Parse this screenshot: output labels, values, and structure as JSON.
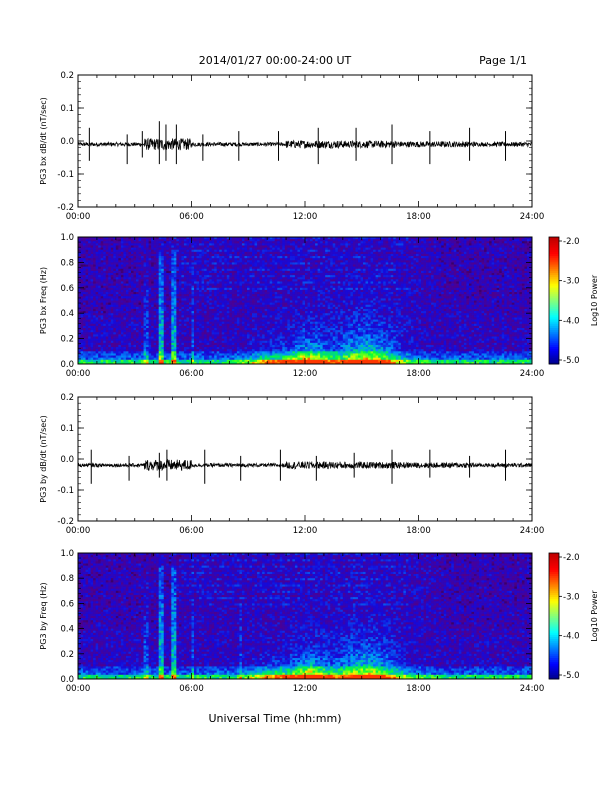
{
  "header": {
    "title": "2014/01/27  00:00-24:00 UT",
    "page": "Page 1/1"
  },
  "footer": {
    "xlabel": "Universal Time (hh:mm)"
  },
  "chart_data": [
    {
      "type": "line",
      "ylabel": "PG3 bx dB/dt (nT/sec)",
      "xlim": [
        0,
        24
      ],
      "ylim": [
        -0.2,
        0.2
      ],
      "x_ticks": [
        "00:00",
        "06:00",
        "12:00",
        "18:00",
        "24:00"
      ],
      "y_ticks": [
        "0.2",
        "0.1",
        "0.0",
        "-0.1",
        "-0.2"
      ],
      "baseline": -0.01,
      "spikes": [
        {
          "t": 0.6,
          "up": 0.04,
          "down": -0.06
        },
        {
          "t": 2.6,
          "up": 0.02,
          "down": -0.07
        },
        {
          "t": 3.4,
          "up": 0.03,
          "down": -0.05
        },
        {
          "t": 4.3,
          "up": 0.06,
          "down": -0.07
        },
        {
          "t": 4.65,
          "up": 0.05,
          "down": -0.06
        },
        {
          "t": 5.2,
          "up": 0.05,
          "down": -0.07
        },
        {
          "t": 6.6,
          "up": 0.02,
          "down": -0.06
        },
        {
          "t": 8.5,
          "up": 0.03,
          "down": -0.06
        },
        {
          "t": 10.6,
          "up": 0.03,
          "down": -0.06
        },
        {
          "t": 12.7,
          "up": 0.04,
          "down": -0.07
        },
        {
          "t": 14.7,
          "up": 0.04,
          "down": -0.06
        },
        {
          "t": 16.6,
          "up": 0.05,
          "down": -0.07
        },
        {
          "t": 18.6,
          "up": 0.03,
          "down": -0.07
        },
        {
          "t": 20.7,
          "up": 0.04,
          "down": -0.06
        },
        {
          "t": 22.6,
          "up": 0.03,
          "down": -0.06
        }
      ]
    },
    {
      "type": "heatmap",
      "ylabel": "PG3 bx Freq (Hz)",
      "xlim": [
        0,
        24
      ],
      "ylim": [
        0.0,
        1.0
      ],
      "x_ticks": [
        "00:00",
        "06:00",
        "12:00",
        "18:00",
        "24:00"
      ],
      "y_ticks": [
        "1.0",
        "0.8",
        "0.6",
        "0.4",
        "0.2",
        "0.0"
      ],
      "colorbar": {
        "label": "Log10 Power",
        "min": -5.0,
        "max": -2.0,
        "ticks": [
          "-2.0",
          "-3.0",
          "-4.0",
          "-5.0"
        ]
      }
    },
    {
      "type": "line",
      "ylabel": "PG3 by dB/dt (nT/sec)",
      "xlim": [
        0,
        24
      ],
      "ylim": [
        -0.2,
        0.2
      ],
      "x_ticks": [
        "00:00",
        "06:00",
        "12:00",
        "18:00",
        "24:00"
      ],
      "y_ticks": [
        "0.2",
        "0.1",
        "0.0",
        "-0.1",
        "-0.2"
      ],
      "baseline": -0.02,
      "spikes": [
        {
          "t": 0.7,
          "up": 0.03,
          "down": -0.08
        },
        {
          "t": 2.7,
          "up": 0.01,
          "down": -0.07
        },
        {
          "t": 4.3,
          "up": 0.02,
          "down": -0.06
        },
        {
          "t": 4.7,
          "up": 0.03,
          "down": -0.07
        },
        {
          "t": 6.7,
          "up": 0.03,
          "down": -0.08
        },
        {
          "t": 8.6,
          "up": 0.01,
          "down": -0.07
        },
        {
          "t": 10.7,
          "up": 0.03,
          "down": -0.07
        },
        {
          "t": 12.6,
          "up": 0.01,
          "down": -0.07
        },
        {
          "t": 14.6,
          "up": 0.02,
          "down": -0.06
        },
        {
          "t": 16.6,
          "up": 0.03,
          "down": -0.08
        },
        {
          "t": 18.6,
          "up": 0.03,
          "down": -0.06
        },
        {
          "t": 20.7,
          "up": 0.01,
          "down": -0.06
        },
        {
          "t": 22.6,
          "up": 0.03,
          "down": -0.07
        }
      ]
    },
    {
      "type": "heatmap",
      "ylabel": "PG3 by Freq (Hz)",
      "xlim": [
        0,
        24
      ],
      "ylim": [
        0.0,
        1.0
      ],
      "x_ticks": [
        "00:00",
        "06:00",
        "12:00",
        "18:00",
        "24:00"
      ],
      "y_ticks": [
        "1.0",
        "0.8",
        "0.6",
        "0.4",
        "0.2",
        "0.0"
      ],
      "colorbar": {
        "label": "Log10 Power",
        "min": -5.0,
        "max": -2.0,
        "ticks": [
          "-2.0",
          "-3.0",
          "-4.0",
          "-5.0"
        ]
      }
    }
  ]
}
